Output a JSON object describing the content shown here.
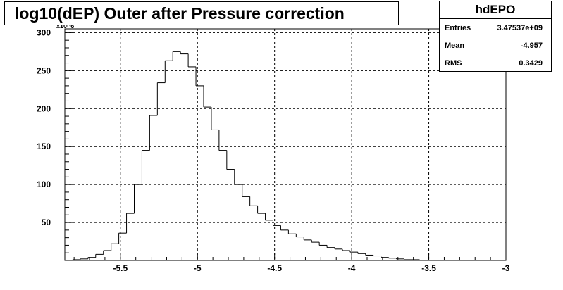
{
  "title": "log10(dEP) Outer after Pressure correction",
  "stats": {
    "name": "hdEPO",
    "rows": [
      {
        "label": "Entries",
        "value": "3.47537e+09"
      },
      {
        "label": "Mean",
        "value": "-4.957"
      },
      {
        "label": "RMS",
        "value": "0.3429"
      }
    ]
  },
  "chart_data": {
    "type": "bar",
    "title": "log10(dEP) Outer after Pressure correction",
    "xlim": [
      -5.86,
      -3
    ],
    "ylim": [
      0,
      305
    ],
    "y_scale_note": "x10^6",
    "grid": true,
    "x_ticks": [
      -5.5,
      -5,
      -4.5,
      -4,
      -3.5,
      -3
    ],
    "x_tick_labels": [
      "-5.5",
      "-5",
      "-4.5",
      "-4",
      "-3.5",
      "-3"
    ],
    "y_ticks": [
      50,
      100,
      150,
      200,
      250,
      300
    ],
    "y_tick_labels": [
      "50",
      "100",
      "150",
      "200",
      "250",
      "300"
    ],
    "bin_start": -5.81,
    "bin_width": 0.05,
    "values": [
      1,
      2,
      4,
      8,
      13,
      22,
      36,
      62,
      100,
      145,
      191,
      234,
      263,
      275,
      272,
      255,
      230,
      202,
      172,
      145,
      120,
      100,
      84,
      72,
      62,
      53,
      46,
      40,
      35,
      31,
      27,
      24,
      20,
      17,
      15,
      13,
      11,
      9,
      7,
      6,
      4,
      3,
      2,
      1,
      1,
      0,
      0,
      0,
      0,
      0
    ]
  }
}
